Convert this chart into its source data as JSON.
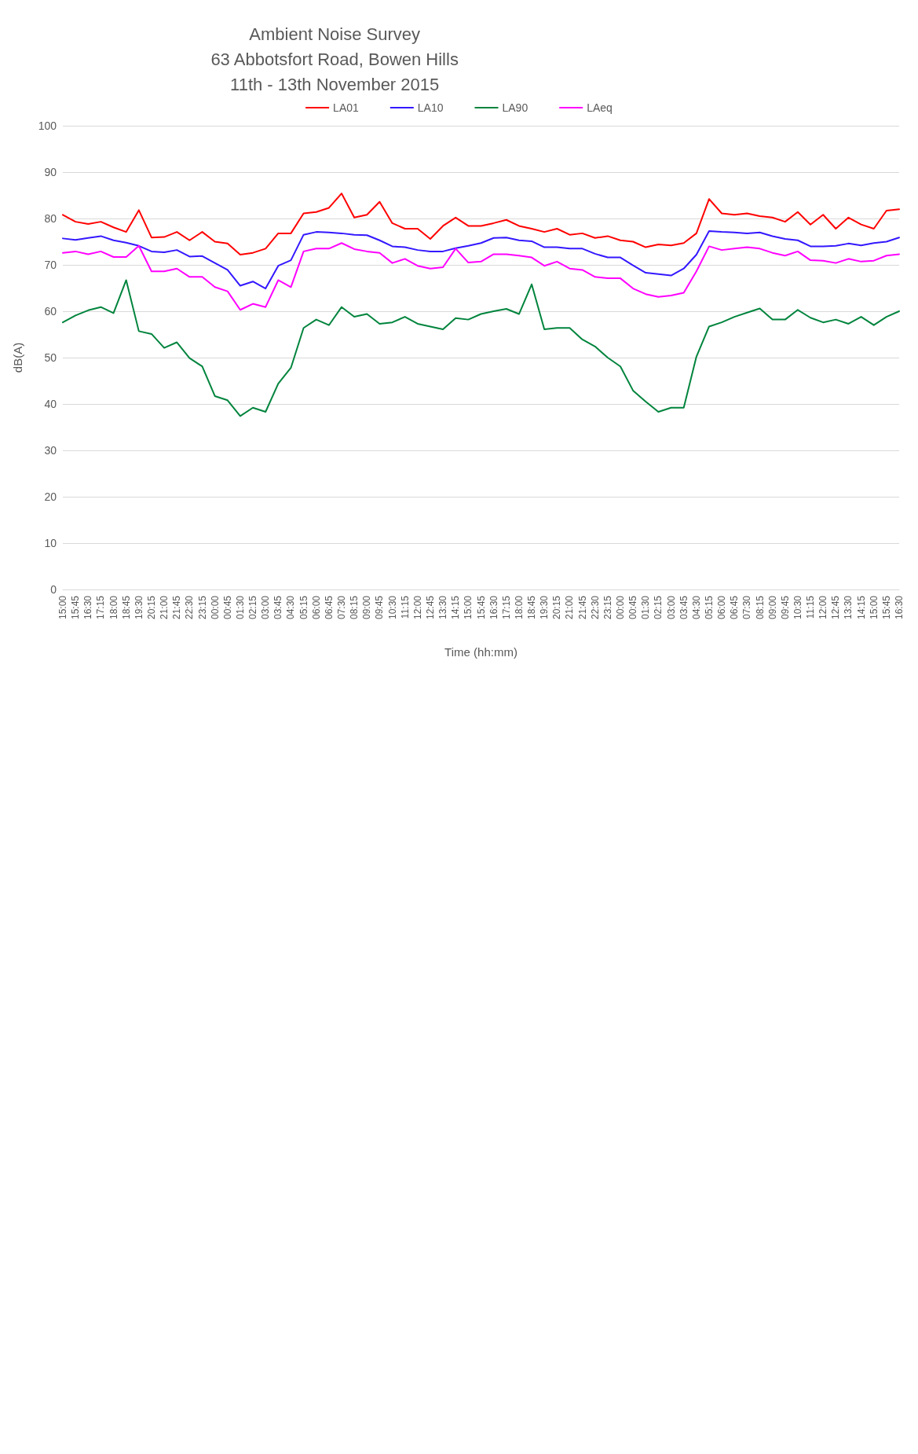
{
  "chart_data": {
    "type": "line",
    "title": "Ambient Noise Survey\n63 Abbotsfort Road, Bowen Hills\n11th - 13th November 2015",
    "xlabel": "Time (hh:mm)",
    "ylabel": "dB(A)",
    "categories": [
      "15:00",
      "15:45",
      "16:30",
      "17:15",
      "18:00",
      "18:45",
      "19:30",
      "20:15",
      "21:00",
      "21:45",
      "22:30",
      "23:15",
      "00:00",
      "00:45",
      "01:30",
      "02:15",
      "03:00",
      "03:45",
      "04:30",
      "05:15",
      "06:00",
      "06:45",
      "07:30",
      "08:15",
      "09:00",
      "09:45",
      "10:30",
      "11:15",
      "12:00",
      "12:45",
      "13:30",
      "14:15",
      "15:00",
      "15:45",
      "16:30",
      "17:15",
      "18:00",
      "18:45",
      "19:30",
      "20:15",
      "21:00",
      "21:45",
      "22:30",
      "23:15",
      "00:00",
      "00:45",
      "01:30",
      "02:15",
      "03:00",
      "03:45",
      "04:30",
      "05:15",
      "06:00",
      "06:45",
      "07:30",
      "08:15",
      "09:00",
      "09:45",
      "10:30",
      "11:15",
      "12:00",
      "12:45",
      "13:30",
      "14:15",
      "15:00",
      "15:45",
      "16:30"
    ],
    "series": [
      {
        "name": "LA01",
        "color": "#ff0000",
        "values": [
          80.8,
          79.3,
          78.8,
          79.3,
          78.1,
          77.1,
          81.8,
          75.9,
          76.0,
          77.1,
          75.3,
          77.1,
          75.0,
          74.6,
          72.2,
          72.6,
          73.5,
          76.8,
          76.8,
          81.1,
          81.4,
          82.3,
          85.4,
          80.2,
          80.8,
          83.6,
          79.0,
          77.8,
          77.8,
          75.6,
          78.4,
          80.2,
          78.4,
          78.4,
          79.0,
          79.7,
          78.4,
          77.8,
          77.1,
          77.8,
          76.5,
          76.8,
          75.8,
          76.2,
          75.3,
          75.0,
          73.8,
          74.4,
          74.2,
          74.7,
          76.8,
          84.2,
          81.1,
          80.8,
          81.1,
          80.5,
          80.2,
          79.3,
          81.4,
          78.7,
          80.8,
          77.8,
          80.2,
          78.7,
          77.8,
          81.7,
          82.0
        ]
      },
      {
        "name": "LA10",
        "color": "#3318ff",
        "values": [
          75.7,
          75.4,
          75.8,
          76.2,
          75.3,
          74.8,
          74.1,
          72.9,
          72.7,
          73.2,
          71.8,
          71.9,
          70.4,
          68.9,
          65.5,
          66.4,
          64.9,
          69.8,
          71.0,
          76.5,
          77.1,
          77.0,
          76.8,
          76.5,
          76.4,
          75.3,
          74.0,
          73.8,
          73.2,
          72.9,
          72.9,
          73.6,
          74.1,
          74.7,
          75.8,
          75.9,
          75.3,
          75.1,
          73.8,
          73.8,
          73.5,
          73.5,
          72.4,
          71.6,
          71.6,
          69.9,
          68.3,
          68.0,
          67.7,
          69.2,
          72.2,
          77.3,
          77.1,
          77.0,
          76.8,
          77.0,
          76.2,
          75.6,
          75.3,
          74.0,
          74.0,
          74.1,
          74.6,
          74.2,
          74.7,
          75.0,
          75.9
        ]
      },
      {
        "name": "LA90",
        "color": "#00843d",
        "values": [
          57.6,
          59.1,
          60.2,
          60.9,
          59.6,
          66.7,
          55.7,
          55.1,
          52.1,
          53.3,
          49.9,
          48.1,
          41.7,
          40.8,
          37.4,
          39.2,
          38.3,
          44.4,
          47.8,
          56.4,
          58.2,
          57.0,
          60.9,
          58.8,
          59.4,
          57.3,
          57.6,
          58.8,
          57.3,
          56.7,
          56.1,
          58.5,
          58.2,
          59.4,
          60.0,
          60.5,
          59.4,
          65.8,
          56.1,
          56.4,
          56.4,
          53.9,
          52.4,
          50.0,
          48.1,
          42.9,
          40.5,
          38.3,
          39.2,
          39.2,
          50.2,
          56.7,
          57.6,
          58.8,
          59.7,
          60.6,
          58.2,
          58.2,
          60.3,
          58.6,
          57.6,
          58.2,
          57.3,
          58.8,
          57.0,
          58.8,
          60.0
        ]
      },
      {
        "name": "LAeq",
        "color": "#ff00ff",
        "values": [
          72.6,
          72.9,
          72.3,
          72.9,
          71.7,
          71.7,
          74.1,
          68.6,
          68.6,
          69.2,
          67.4,
          67.4,
          65.2,
          64.3,
          60.3,
          61.6,
          60.9,
          66.7,
          65.2,
          72.9,
          73.5,
          73.5,
          74.7,
          73.4,
          72.9,
          72.6,
          70.4,
          71.3,
          69.8,
          69.2,
          69.5,
          73.5,
          70.5,
          70.7,
          72.3,
          72.3,
          72.0,
          71.6,
          69.8,
          70.7,
          69.2,
          68.9,
          67.4,
          67.1,
          67.1,
          64.9,
          63.7,
          63.1,
          63.4,
          64.0,
          68.6,
          74.0,
          73.2,
          73.5,
          73.8,
          73.5,
          72.6,
          72.0,
          72.9,
          71.0,
          70.9,
          70.4,
          71.3,
          70.7,
          70.9,
          72.0,
          72.3
        ]
      }
    ],
    "ylim": [
      0,
      100
    ],
    "yticks": [
      0,
      10,
      20,
      30,
      40,
      50,
      60,
      70,
      80,
      90,
      100
    ],
    "grid": "y",
    "legend": "top",
    "marker": "none",
    "line_style": "solid"
  }
}
